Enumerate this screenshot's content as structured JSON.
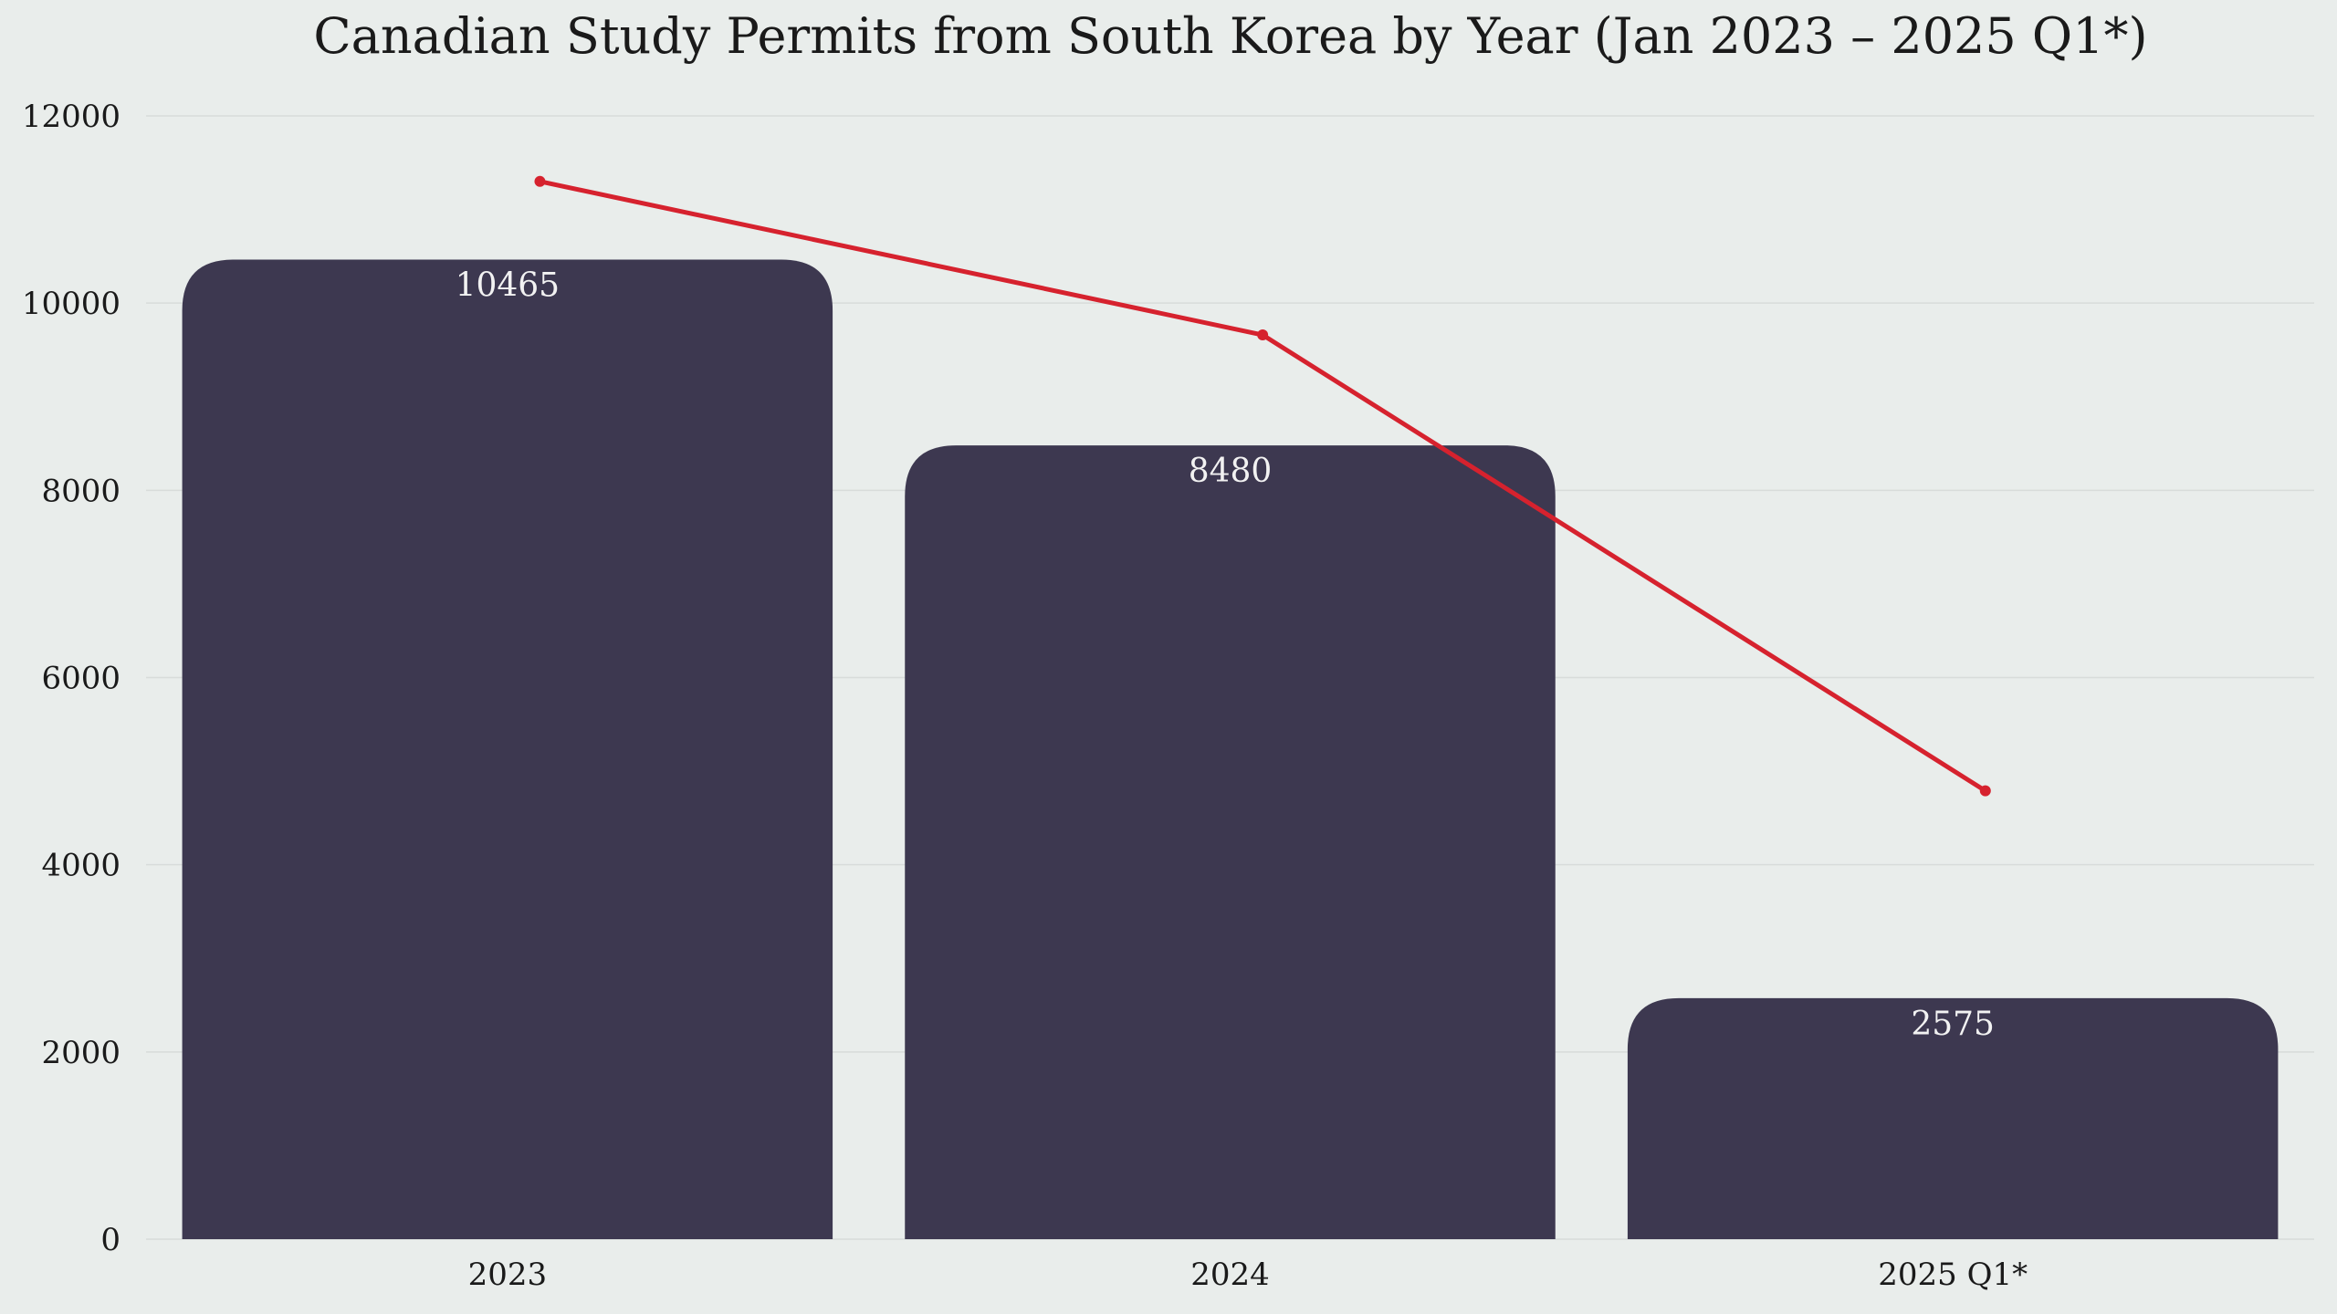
{
  "chart_data": {
    "type": "bar",
    "title": "Canadian Study Permits from South Korea by Year (Jan 2023 – 2025 Q1*)",
    "categories": [
      "2023",
      "2024",
      "2025 Q1*"
    ],
    "values": [
      10465,
      8480,
      2575
    ],
    "value_labels": [
      "10465",
      "8480",
      "2575"
    ],
    "line_series": {
      "values": [
        11300,
        9660,
        4790
      ]
    },
    "ylim": [
      0,
      12000
    ],
    "yticks": [
      0,
      2000,
      4000,
      6000,
      8000,
      10000,
      12000
    ],
    "ytick_labels": [
      "0",
      "2000",
      "4000",
      "6000",
      "8000",
      "10000",
      "12000"
    ],
    "xlabel": "",
    "ylabel": "",
    "grid": true,
    "legend": "none"
  },
  "colors": {
    "background": "#e9edeb",
    "bar": "#3d3850",
    "bar_label": "#f2f2f2",
    "line": "#d6222e",
    "grid": "#d8dcda",
    "text": "#1a1a1a"
  }
}
